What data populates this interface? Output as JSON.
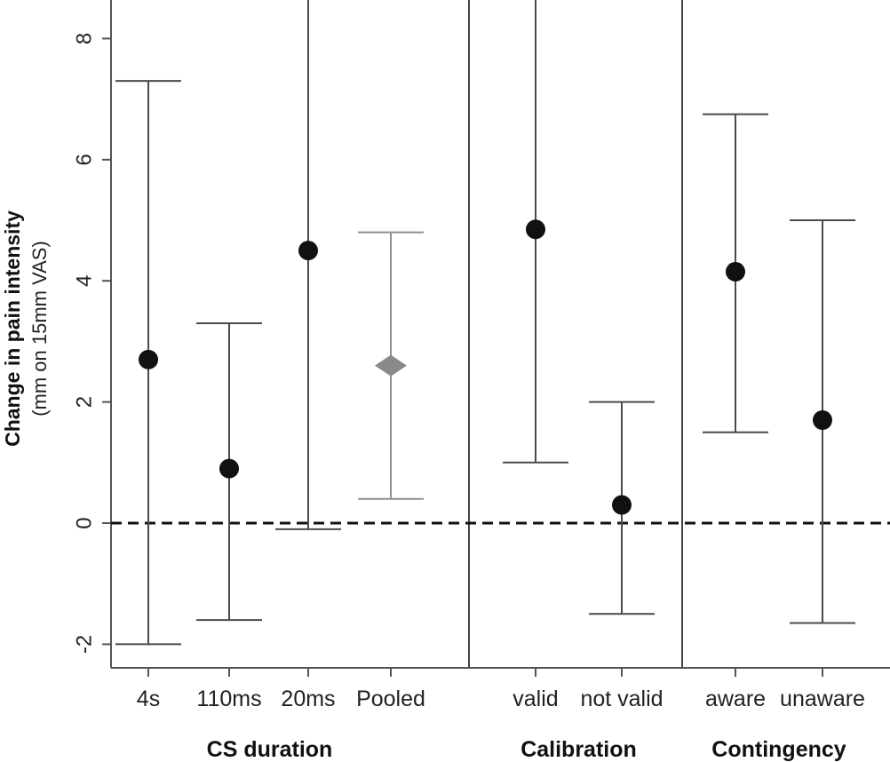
{
  "chart_data": {
    "type": "scatter",
    "subtype": "point-estimate-with-error-bars",
    "ylabel": "Change in pain intensity",
    "ylabel_sub": "(mm on 15mm VAS)",
    "ylim": [
      -2.5,
      8.7
    ],
    "yticks": [
      -2,
      0,
      2,
      4,
      6,
      8
    ],
    "ytick_labels": [
      "-2",
      "0",
      "2",
      "4",
      "6",
      "8"
    ],
    "reference_line": {
      "y": 0,
      "style": "dashed"
    },
    "grid": false,
    "groups": [
      {
        "label": "CS duration",
        "categories": [
          "4s",
          "110ms",
          "20ms",
          "Pooled"
        ]
      },
      {
        "label": "Calibration",
        "categories": [
          "valid",
          "not valid"
        ]
      },
      {
        "label": "Contingency",
        "categories": [
          "aware",
          "unaware"
        ]
      }
    ],
    "points": [
      {
        "category": "4s",
        "estimate": 2.7,
        "lower": -2.0,
        "upper": 7.3,
        "marker": "circle",
        "color": "#111111",
        "bar_color": "#4a4a4a"
      },
      {
        "category": "110ms",
        "estimate": 0.9,
        "lower": -1.6,
        "upper": 3.3,
        "marker": "circle",
        "color": "#111111",
        "bar_color": "#4a4a4a"
      },
      {
        "category": "20ms",
        "estimate": 4.5,
        "lower": -0.1,
        "upper": 9.1,
        "marker": "circle",
        "color": "#111111",
        "bar_color": "#4a4a4a"
      },
      {
        "category": "Pooled",
        "estimate": 2.6,
        "lower": 0.4,
        "upper": 4.8,
        "marker": "diamond",
        "color": "#8a8a8a",
        "bar_color": "#8f8f8f"
      },
      {
        "category": "valid",
        "estimate": 4.85,
        "lower": 1.0,
        "upper": 8.7,
        "marker": "circle",
        "color": "#111111",
        "bar_color": "#4a4a4a"
      },
      {
        "category": "not valid",
        "estimate": 0.3,
        "lower": -1.5,
        "upper": 2.0,
        "marker": "circle",
        "color": "#111111",
        "bar_color": "#4a4a4a"
      },
      {
        "category": "aware",
        "estimate": 4.15,
        "lower": 1.5,
        "upper": 6.75,
        "marker": "circle",
        "color": "#111111",
        "bar_color": "#4a4a4a"
      },
      {
        "category": "unaware",
        "estimate": 1.7,
        "lower": -1.65,
        "upper": 5.0,
        "marker": "circle",
        "color": "#111111",
        "bar_color": "#4a4a4a"
      }
    ]
  }
}
